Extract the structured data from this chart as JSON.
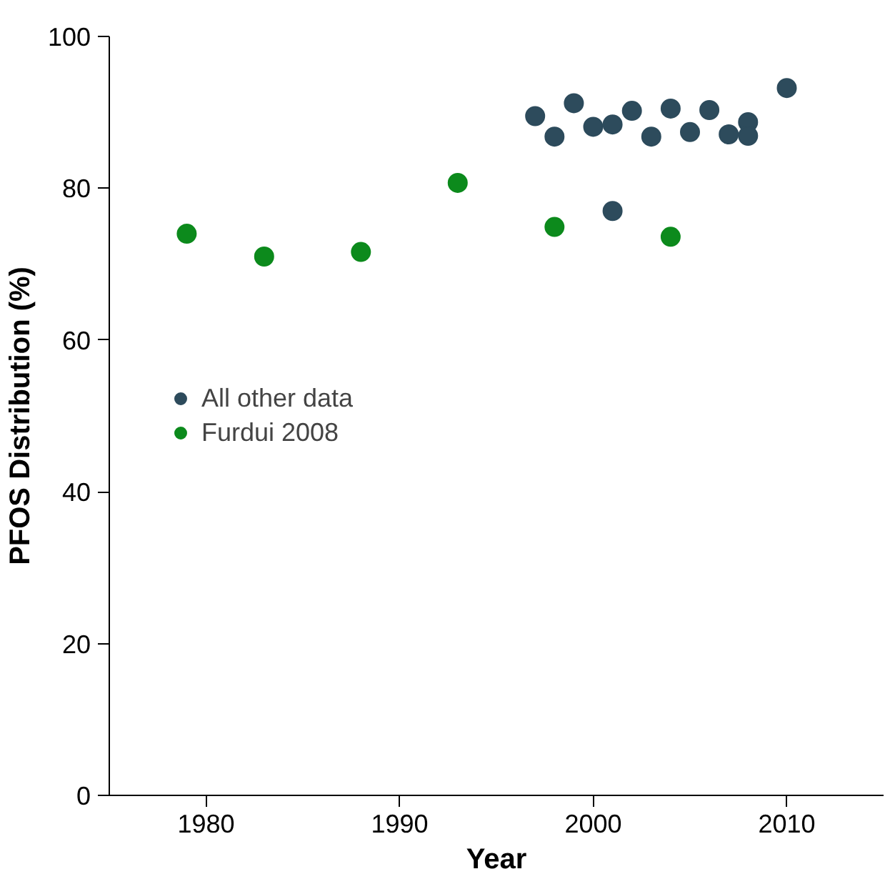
{
  "chart_data": {
    "type": "scatter",
    "xlabel": "Year",
    "ylabel": "PFOS Distribution (%)",
    "xlim": [
      1975,
      2015
    ],
    "ylim": [
      0,
      100
    ],
    "xticks": [
      1980,
      1990,
      2000,
      2010
    ],
    "yticks": [
      0,
      20,
      40,
      60,
      80,
      100
    ],
    "grid": false,
    "legend": "left",
    "marker": "circle",
    "series": [
      {
        "name": "All other data",
        "color": "#2d4b5c",
        "x": [
          1997,
          1998,
          1999,
          2000,
          2001,
          2002,
          2003,
          2004,
          2005,
          2006,
          2007,
          2008,
          2008,
          2010,
          2001
        ],
        "values": [
          89.5,
          86.8,
          91.2,
          88.1,
          88.4,
          90.2,
          86.8,
          90.5,
          87.4,
          90.3,
          87.1,
          88.7,
          86.9,
          93.2,
          77
        ]
      },
      {
        "name": "Furdui 2008",
        "color": "#0c8a1c",
        "x": [
          1979,
          1983,
          1988,
          1993,
          1998,
          2004
        ],
        "values": [
          74,
          71,
          71.6,
          80.7,
          74.9,
          73.6
        ]
      }
    ]
  }
}
